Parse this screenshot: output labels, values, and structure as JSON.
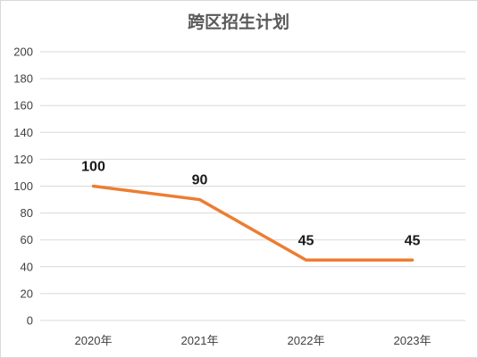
{
  "chart_data": {
    "type": "line",
    "title": "跨区招生计划",
    "categories": [
      "2020年",
      "2021年",
      "2022年",
      "2023年"
    ],
    "series": [
      {
        "values": [
          100,
          90,
          45,
          45
        ],
        "color": "#ed7d31"
      }
    ],
    "ylim": [
      0,
      200
    ],
    "yticks": [
      0,
      20,
      40,
      60,
      80,
      100,
      120,
      140,
      160,
      180,
      200
    ],
    "grid": true,
    "legend": "none",
    "data_labels": true
  }
}
